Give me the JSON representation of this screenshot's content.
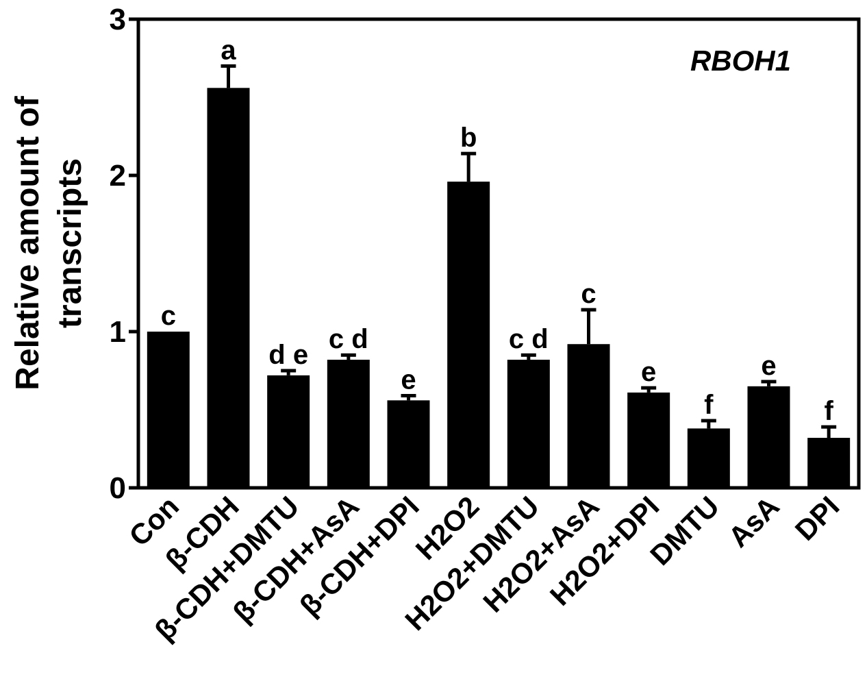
{
  "chart_data": {
    "type": "bar",
    "title": "RBOH1",
    "xlabel": "",
    "ylabel": [
      "Relative amount of",
      "transcripts"
    ],
    "ylim": [
      0,
      3
    ],
    "yticks": [
      "0",
      "1",
      "2",
      "3"
    ],
    "categories": [
      "Con",
      "β-CDH",
      "β-CDH+DMTU",
      "β-CDH+AsA",
      "β-CDH+DPI",
      "H2O2",
      "H2O2+DMTU",
      "H2O2+AsA",
      "H2O2+DPI",
      "DMTU",
      "AsA",
      "DPI"
    ],
    "values": [
      1.0,
      2.56,
      0.72,
      0.82,
      0.56,
      1.96,
      0.82,
      0.92,
      0.61,
      0.38,
      0.65,
      0.32
    ],
    "errors": [
      0.0,
      0.14,
      0.03,
      0.03,
      0.03,
      0.18,
      0.03,
      0.22,
      0.03,
      0.05,
      0.03,
      0.07
    ],
    "significance_letters": [
      "c",
      "a",
      "d e",
      "c d",
      "e",
      "b",
      "c d",
      "c",
      "e",
      "f",
      "e",
      "f"
    ],
    "grid": false,
    "legend": "none",
    "bar_color": "#000000"
  }
}
